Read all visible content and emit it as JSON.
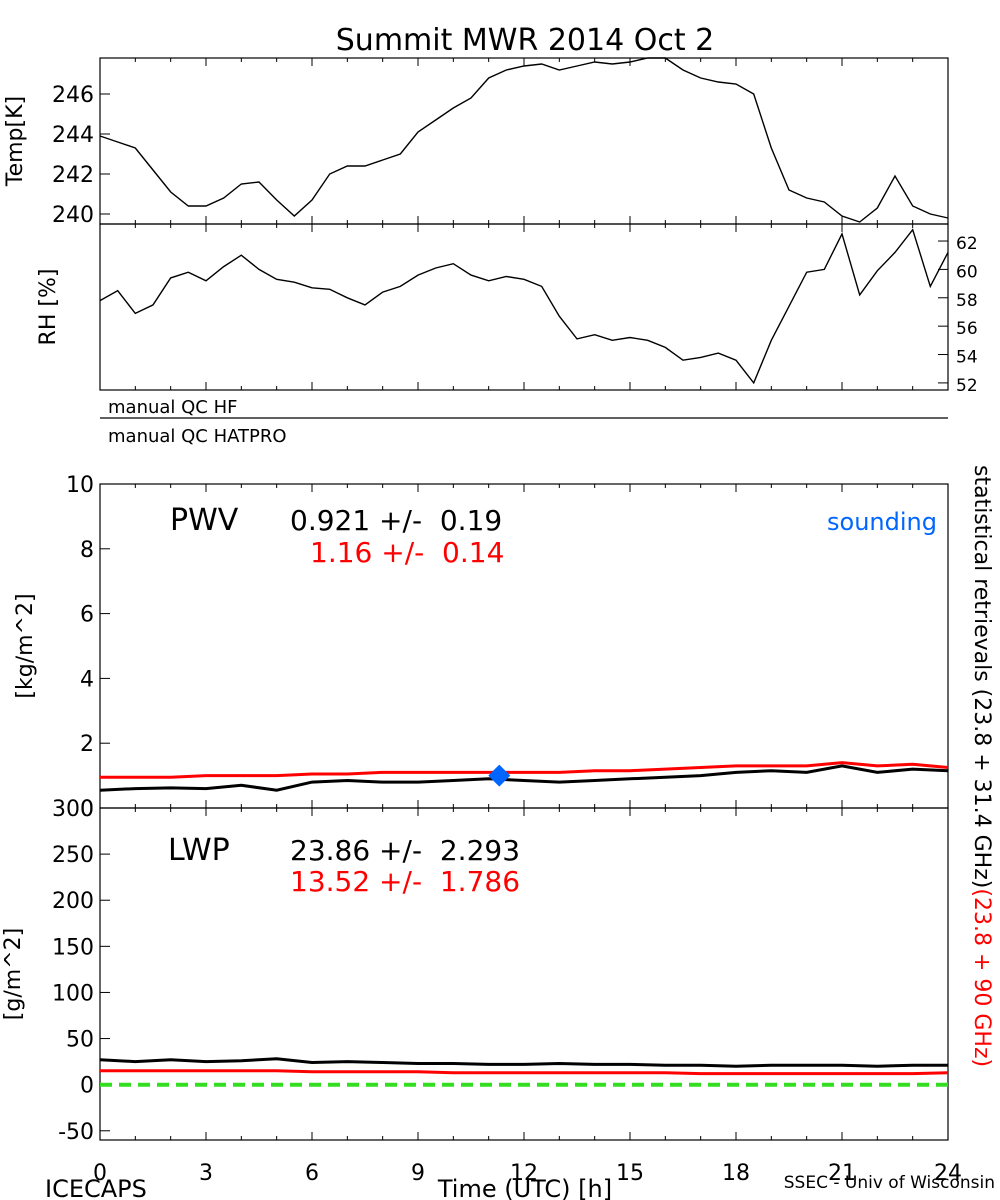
{
  "title": "Summit MWR 2014 Oct  2",
  "footer": {
    "left": "ICECAPS",
    "center": "Time (UTC) [h]",
    "right": "SSEC - Univ of Wisconsin"
  },
  "qc_labels": [
    "manual QC HF",
    "manual QC HATPRO"
  ],
  "right_label": {
    "black": "statistical retrievals (23.8 + 31.4 GHz)",
    "red": "(23.8 + 90 GHz)"
  },
  "pwv_stats": {
    "name": "PWV",
    "black": "0.921 +/-  0.19",
    "red": "1.16 +/-  0.14",
    "sounding": "sounding"
  },
  "lwp_stats": {
    "name": "LWP",
    "black": "23.86 +/-  2.293",
    "red": "13.52 +/-  1.786"
  },
  "colors": {
    "black": "#000000",
    "red": "#ff0000",
    "blue": "#0066ff",
    "green": "#33dd22"
  },
  "chart_data": [
    {
      "type": "line",
      "ylabel": "Temp[K]",
      "xlim": [
        0,
        24
      ],
      "ylim": [
        239.5,
        247.8
      ],
      "yticks": [
        240,
        242,
        244,
        246
      ],
      "series": [
        {
          "color": "#000000",
          "x": [
            0,
            0.5,
            1,
            1.5,
            2,
            2.5,
            3,
            3.5,
            4,
            4.5,
            5,
            5.5,
            6,
            6.5,
            7,
            7.5,
            8,
            8.5,
            9,
            9.5,
            10,
            10.5,
            11,
            11.5,
            12,
            12.5,
            13,
            13.5,
            14,
            14.5,
            15,
            15.5,
            16,
            16.5,
            17,
            17.5,
            18,
            18.5,
            19,
            19.5,
            20,
            20.5,
            21,
            21.5,
            22,
            22.5,
            23,
            23.5,
            24
          ],
          "y": [
            243.9,
            243.6,
            243.3,
            242.2,
            241.1,
            240.4,
            240.4,
            240.8,
            241.5,
            241.6,
            240.7,
            239.9,
            240.7,
            242.0,
            242.4,
            242.4,
            242.7,
            243.0,
            244.1,
            244.7,
            245.3,
            245.8,
            246.8,
            247.2,
            247.4,
            247.5,
            247.2,
            247.4,
            247.6,
            247.5,
            247.6,
            247.8,
            247.8,
            247.2,
            246.8,
            246.6,
            246.5,
            246.0,
            243.3,
            241.2,
            240.8,
            240.6,
            239.9,
            239.6,
            240.3,
            241.9,
            240.4,
            240.0,
            239.8
          ]
        }
      ]
    },
    {
      "type": "line",
      "ylabel": "RH [%]",
      "xlim": [
        0,
        24
      ],
      "ylim": [
        51.5,
        63.2
      ],
      "yticks": [
        52,
        54,
        56,
        58,
        60,
        62
      ],
      "series": [
        {
          "color": "#000000",
          "x": [
            0,
            0.5,
            1,
            1.5,
            2,
            2.5,
            3,
            3.5,
            4,
            4.5,
            5,
            5.5,
            6,
            6.5,
            7,
            7.5,
            8,
            8.5,
            9,
            9.5,
            10,
            10.5,
            11,
            11.5,
            12,
            12.5,
            13,
            13.5,
            14,
            14.5,
            15,
            15.5,
            16,
            16.5,
            17,
            17.5,
            18,
            18.5,
            19,
            19.5,
            20,
            20.5,
            21,
            21.5,
            22,
            22.5,
            23,
            23.5,
            24
          ],
          "y": [
            57.8,
            58.5,
            56.9,
            57.5,
            59.4,
            59.8,
            59.2,
            60.2,
            61.0,
            60.0,
            59.3,
            59.1,
            58.7,
            58.6,
            58.0,
            57.5,
            58.4,
            58.8,
            59.6,
            60.1,
            60.4,
            59.6,
            59.2,
            59.5,
            59.3,
            58.8,
            56.7,
            55.1,
            55.4,
            55.0,
            55.2,
            55.0,
            54.5,
            53.6,
            53.8,
            54.1,
            53.6,
            52.0,
            55.0,
            57.4,
            59.8,
            60.0,
            62.5,
            58.2,
            59.9,
            61.2,
            62.8,
            58.8,
            61.2
          ]
        }
      ]
    },
    {
      "type": "line",
      "ylabel": "[kg/m^2]",
      "xlim": [
        0,
        24
      ],
      "ylim": [
        0,
        10
      ],
      "yticks": [
        0,
        2,
        4,
        6,
        8,
        10
      ],
      "series": [
        {
          "color": "#000000",
          "x": [
            0,
            1,
            2,
            3,
            4,
            5,
            6,
            7,
            8,
            9,
            10,
            11,
            12,
            13,
            14,
            15,
            16,
            17,
            18,
            19,
            20,
            21,
            22,
            23,
            24
          ],
          "y": [
            0.55,
            0.6,
            0.62,
            0.6,
            0.7,
            0.55,
            0.8,
            0.85,
            0.8,
            0.8,
            0.85,
            0.9,
            0.85,
            0.8,
            0.85,
            0.9,
            0.95,
            1.0,
            1.1,
            1.15,
            1.1,
            1.3,
            1.1,
            1.2,
            1.15
          ]
        },
        {
          "color": "#ff0000",
          "x": [
            0,
            1,
            2,
            3,
            4,
            5,
            6,
            7,
            8,
            9,
            10,
            11,
            12,
            13,
            14,
            15,
            16,
            17,
            18,
            19,
            20,
            21,
            22,
            23,
            24
          ],
          "y": [
            0.95,
            0.95,
            0.95,
            1.0,
            1.0,
            1.0,
            1.05,
            1.05,
            1.1,
            1.1,
            1.1,
            1.1,
            1.1,
            1.1,
            1.15,
            1.15,
            1.2,
            1.25,
            1.3,
            1.3,
            1.3,
            1.4,
            1.3,
            1.35,
            1.25
          ]
        }
      ],
      "points": [
        {
          "name": "sounding",
          "x": 11.3,
          "y": 1.0,
          "color": "#0066ff"
        }
      ]
    },
    {
      "type": "line",
      "ylabel": "[g/m^2]",
      "xlim": [
        0,
        24
      ],
      "ylim": [
        -60,
        300
      ],
      "yticks": [
        -50,
        0,
        50,
        100,
        150,
        200,
        250,
        300
      ],
      "xticks": [
        0,
        3,
        6,
        9,
        12,
        15,
        18,
        21,
        24
      ],
      "series": [
        {
          "color": "#000000",
          "x": [
            0,
            1,
            2,
            3,
            4,
            5,
            6,
            7,
            8,
            9,
            10,
            11,
            12,
            13,
            14,
            15,
            16,
            17,
            18,
            19,
            20,
            21,
            22,
            23,
            24
          ],
          "y": [
            27,
            25,
            27,
            25,
            26,
            28,
            24,
            25,
            24,
            23,
            23,
            22,
            22,
            23,
            22,
            22,
            21,
            21,
            20,
            21,
            21,
            21,
            20,
            21,
            21
          ]
        },
        {
          "color": "#ff0000",
          "x": [
            0,
            1,
            2,
            3,
            4,
            5,
            6,
            7,
            8,
            9,
            10,
            11,
            12,
            13,
            14,
            15,
            16,
            17,
            18,
            19,
            20,
            21,
            22,
            23,
            24
          ],
          "y": [
            15,
            15,
            15,
            15,
            15,
            15,
            14,
            14,
            14,
            14,
            13,
            13,
            13,
            13,
            13,
            13,
            13,
            12,
            12,
            12,
            12,
            12,
            12,
            12,
            13
          ]
        },
        {
          "color": "#33dd22",
          "dashed": true,
          "x": [
            0,
            24
          ],
          "y": [
            0,
            0
          ]
        }
      ]
    }
  ]
}
